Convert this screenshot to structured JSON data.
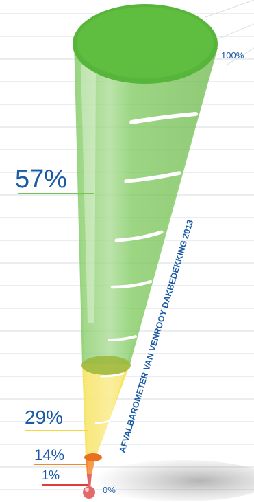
{
  "chart_data": {
    "type": "gauge",
    "title": "AFVALBAROMETER VAN VENROOY DAKBEDEKKING 2013",
    "scale": {
      "min_label": "0%",
      "max_label": "100%"
    },
    "series": [
      {
        "value": 57,
        "label": "57%",
        "color": "#6fc24a"
      },
      {
        "value": 29,
        "label": "29%",
        "color": "#f5e04a"
      },
      {
        "value": 14,
        "label": "14%",
        "color": "#f08a2a"
      },
      {
        "value": 1,
        "label": "1%",
        "color": "#e03c3c"
      }
    ],
    "colors": {
      "text": "#1a5aa6",
      "grid": "#dfe3e8"
    }
  }
}
